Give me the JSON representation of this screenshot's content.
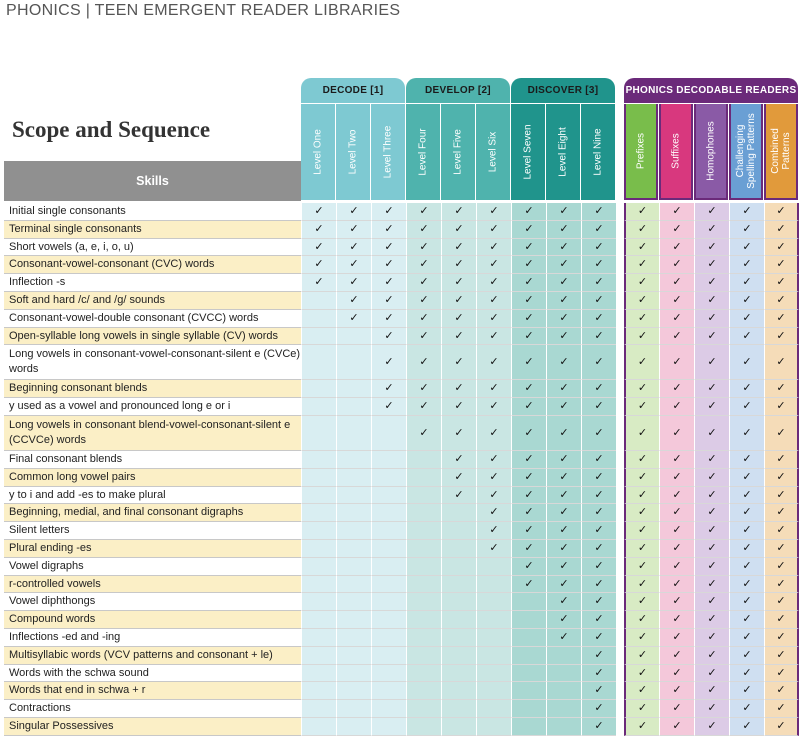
{
  "header": "PHONICS | TEEN EMERGENT READER LIBRARIES",
  "title": "Scope and Sequence",
  "skills_header": "Skills",
  "check_mark": "✓",
  "groups": [
    {
      "label": "DECODE [1]",
      "color": "#7ec9d2"
    },
    {
      "label": "DEVELOP [2]",
      "color": "#4fb3ad"
    },
    {
      "label": "DISCOVER [3]",
      "color": "#20948c"
    },
    {
      "label": "PHONICS DECODABLE READERS",
      "color": "#6b2a7a"
    }
  ],
  "columns": [
    {
      "label": "Level One",
      "header_color": "#7ec9d2",
      "tint": "#d9eef2"
    },
    {
      "label": "Level Two",
      "header_color": "#7ec9d2",
      "tint": "#d9eef2"
    },
    {
      "label": "Level Three",
      "header_color": "#7ec9d2",
      "tint": "#d9eef2"
    },
    {
      "label": "Level Four",
      "header_color": "#4fb3ad",
      "tint": "#c9e6e3"
    },
    {
      "label": "Level Five",
      "header_color": "#4fb3ad",
      "tint": "#c9e6e3"
    },
    {
      "label": "Level Six",
      "header_color": "#4fb3ad",
      "tint": "#c9e6e3"
    },
    {
      "label": "Level Seven",
      "header_color": "#20948c",
      "tint": "#a9d8d2"
    },
    {
      "label": "Level Eight",
      "header_color": "#20948c",
      "tint": "#a9d8d2"
    },
    {
      "label": "Level Nine",
      "header_color": "#20948c",
      "tint": "#a9d8d2"
    },
    {
      "label": "Prefixes",
      "header_color": "#79bd4b",
      "tint": "#d8ebc4"
    },
    {
      "label": "Suffixes",
      "header_color": "#d8387e",
      "tint": "#f4c8da"
    },
    {
      "label": "Homophones",
      "header_color": "#8a5aa6",
      "tint": "#dccbe6"
    },
    {
      "label": "Challenging Spelling Patterns",
      "header_color": "#6a9fd4",
      "tint": "#cfdff1"
    },
    {
      "label": "Combined Patterns",
      "header_color": "#e19a3b",
      "tint": "#f5dcb8"
    }
  ],
  "skills": [
    {
      "label": "Initial single consonants",
      "start": 1,
      "height": 1
    },
    {
      "label": "Terminal single consonants",
      "start": 1,
      "height": 1
    },
    {
      "label": "Short vowels (a, e, i, o, u)",
      "start": 1,
      "height": 1
    },
    {
      "label": "Consonant-vowel-consonant (CVC) words",
      "start": 1,
      "height": 1
    },
    {
      "label": "Inflection -s",
      "start": 1,
      "height": 1
    },
    {
      "label": "Soft and hard /c/ and /g/ sounds",
      "start": 2,
      "height": 1
    },
    {
      "label": "Consonant-vowel-double consonant (CVCC) words",
      "start": 2,
      "height": 1
    },
    {
      "label": "Open-syllable long vowels in single syllable (CV) words",
      "start": 3,
      "height": 1
    },
    {
      "label": "Long vowels in consonant-vowel-consonant-silent e (CVCe) words",
      "start": 3,
      "height": 2
    },
    {
      "label": "Beginning consonant blends",
      "start": 3,
      "height": 1
    },
    {
      "label": "y used as a vowel and pronounced long e or i",
      "start": 3,
      "height": 1
    },
    {
      "label": "Long vowels in consonant blend-vowel-consonant-silent e (CCVCe) words",
      "start": 4,
      "height": 2
    },
    {
      "label": "Final consonant blends",
      "start": 5,
      "height": 1
    },
    {
      "label": "Common long vowel pairs",
      "start": 5,
      "height": 1
    },
    {
      "label": "y to i and add -es to make plural",
      "start": 5,
      "height": 1
    },
    {
      "label": "Beginning, medial, and final consonant digraphs",
      "start": 6,
      "height": 1
    },
    {
      "label": "Silent letters",
      "start": 6,
      "height": 1
    },
    {
      "label": "Plural ending -es",
      "start": 6,
      "height": 1
    },
    {
      "label": "Vowel digraphs",
      "start": 7,
      "height": 1
    },
    {
      "label": "r-controlled vowels",
      "start": 7,
      "height": 1
    },
    {
      "label": "Vowel diphthongs",
      "start": 8,
      "height": 1
    },
    {
      "label": "Compound words",
      "start": 8,
      "height": 1
    },
    {
      "label": "Inflections -ed and -ing",
      "start": 8,
      "height": 1
    },
    {
      "label": "Multisyllabic words (VCV patterns and consonant + le)",
      "start": 9,
      "height": 1
    },
    {
      "label": "Words with the schwa sound",
      "start": 9,
      "height": 1
    },
    {
      "label": "Words that end in schwa + r",
      "start": 9,
      "height": 1
    },
    {
      "label": "Contractions",
      "start": 9,
      "height": 1
    },
    {
      "label": "Singular Possessives",
      "start": 9,
      "height": 1
    }
  ]
}
